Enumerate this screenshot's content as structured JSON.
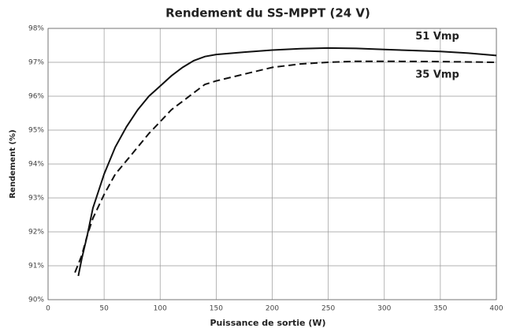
{
  "chart_data": {
    "type": "line",
    "title": "Rendement du SS-MPPT (24 V)",
    "xlabel": "Puissance de sortie (W)",
    "ylabel": "Rendement (%)",
    "xlim": [
      0,
      400
    ],
    "xticks": [
      0,
      50,
      100,
      150,
      200,
      250,
      300,
      350,
      400
    ],
    "ylim": [
      90,
      98
    ],
    "yticks": [
      {
        "value": 90,
        "label": "90%"
      },
      {
        "value": 91,
        "label": "91%"
      },
      {
        "value": 92,
        "label": "92%"
      },
      {
        "value": 93,
        "label": "93%"
      },
      {
        "value": 94,
        "label": "94%"
      },
      {
        "value": 95,
        "label": "95%"
      },
      {
        "value": 96,
        "label": "96%"
      },
      {
        "value": 97,
        "label": "97%"
      },
      {
        "value": 98,
        "label": "98%"
      }
    ],
    "grid": true,
    "series": [
      {
        "name": "51 Vmp",
        "color": "#111111",
        "dashed": false,
        "x": [
          27,
          30,
          35,
          40,
          50,
          60,
          70,
          80,
          90,
          100,
          110,
          120,
          130,
          140,
          150,
          175,
          200,
          225,
          250,
          275,
          300,
          325,
          350,
          375,
          400
        ],
        "values": [
          90.7,
          91.2,
          91.9,
          92.7,
          93.7,
          94.5,
          95.1,
          95.6,
          96.0,
          96.3,
          96.6,
          96.85,
          97.05,
          97.17,
          97.23,
          97.3,
          97.36,
          97.4,
          97.42,
          97.41,
          97.38,
          97.35,
          97.32,
          97.27,
          97.2
        ]
      },
      {
        "name": "35 Vmp",
        "color": "#111111",
        "dashed": true,
        "x": [
          24,
          30,
          35,
          40,
          50,
          60,
          70,
          80,
          90,
          100,
          110,
          120,
          130,
          140,
          150,
          175,
          200,
          225,
          250,
          275,
          300,
          350,
          400
        ],
        "values": [
          90.8,
          91.3,
          91.9,
          92.4,
          93.1,
          93.7,
          94.1,
          94.5,
          94.9,
          95.25,
          95.6,
          95.85,
          96.1,
          96.35,
          96.45,
          96.65,
          96.85,
          96.95,
          97.0,
          97.03,
          97.03,
          97.02,
          97.0
        ]
      }
    ]
  }
}
